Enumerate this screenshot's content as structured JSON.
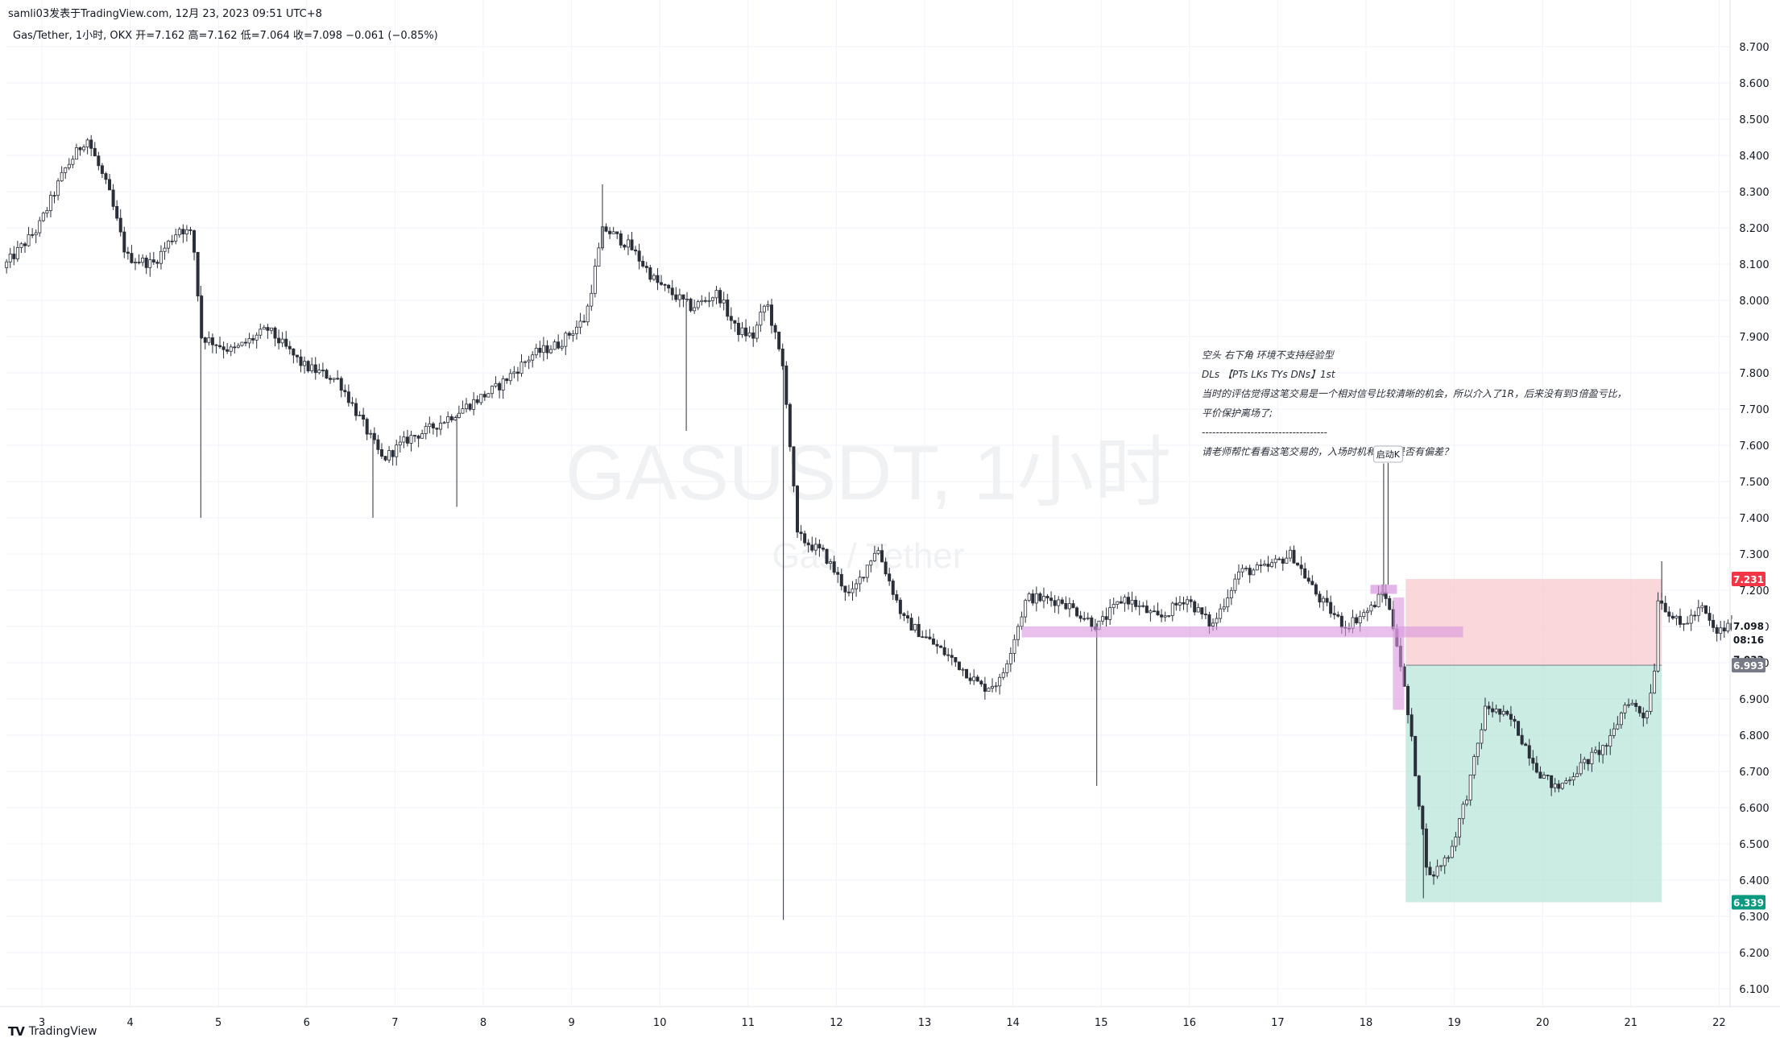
{
  "header": {
    "publish_line": "samli03发表于TradingView.com,  12月 23, 2023 09:51 UTC+8",
    "legend_symbol": "Gas/Tether, 1小时, OKX",
    "legend_ohlc": "开=7.162  高=7.162  低=7.064  收=7.098  −0.061 (−0.85%)"
  },
  "watermark": {
    "ticker": "GASUSDT, 1小时",
    "name": "Gas / Tether"
  },
  "footer": {
    "logo": "TradingView"
  },
  "annotation": {
    "lines": [
      "空头 右下角 环境不支持经验型",
      "DLs 【PTs LKs TYs DNs】1st",
      "当时的评估觉得这笔交易是一个相对信号比较清晰的机会，所以介入了1R，后来没有到3倍盈亏比，",
      "平价保护离场了;",
      "------------------------------------",
      "请老师帮忙看看这笔交易的，入场时机和逻辑是否有偏差？"
    ],
    "callout": "启动K"
  },
  "colors": {
    "bull": "#ffffff",
    "bear": "#2a2e39",
    "candle_outline": "#2a2e39",
    "stop_zone": "#f8c9cd",
    "target_zone": "#b8e6da",
    "highlight": "#d896de",
    "stop_badge": "#f23645",
    "target_badge": "#089981",
    "entry_badge": "#787b86",
    "last_badge": "#ffffff"
  },
  "chart_data": {
    "type": "candlestick",
    "symbol": "GASUSDT",
    "exchange": "OKX",
    "interval": "1小时",
    "ylim": [
      6.05,
      8.78
    ],
    "y_ticks": [
      "8.700",
      "8.600",
      "8.500",
      "8.400",
      "8.300",
      "8.200",
      "8.100",
      "8.000",
      "7.900",
      "7.800",
      "7.700",
      "7.600",
      "7.500",
      "7.400",
      "7.300",
      "7.200",
      "7.100",
      "7.000",
      "6.900",
      "6.800",
      "6.700",
      "6.600",
      "6.500",
      "6.400",
      "6.300",
      "6.200",
      "6.100"
    ],
    "x_ticks": [
      "3",
      "4",
      "5",
      "6",
      "7",
      "8",
      "9",
      "10",
      "11",
      "12",
      "13",
      "14",
      "15",
      "16",
      "17",
      "18",
      "19",
      "20",
      "21",
      "22"
    ],
    "price_labels": {
      "stop": "7.231",
      "current": "7.098",
      "countdown": "08:16",
      "current_alt": "7.032",
      "entry": "6.993",
      "target": "6.339"
    },
    "path": [
      [
        2.6,
        8.09
      ],
      [
        3.0,
        8.2
      ],
      [
        3.3,
        8.36
      ],
      [
        3.55,
        8.45
      ],
      [
        3.8,
        8.3
      ],
      [
        4.0,
        8.12
      ],
      [
        4.3,
        8.1
      ],
      [
        4.6,
        8.2
      ],
      [
        4.75,
        8.18
      ],
      [
        4.85,
        7.9
      ],
      [
        5.2,
        7.86
      ],
      [
        5.6,
        7.92
      ],
      [
        6.0,
        7.82
      ],
      [
        6.4,
        7.78
      ],
      [
        6.7,
        7.65
      ],
      [
        6.9,
        7.56
      ],
      [
        7.2,
        7.62
      ],
      [
        7.4,
        7.64
      ],
      [
        7.8,
        7.7
      ],
      [
        8.2,
        7.76
      ],
      [
        8.6,
        7.85
      ],
      [
        8.9,
        7.88
      ],
      [
        9.2,
        7.95
      ],
      [
        9.4,
        8.2
      ],
      [
        9.7,
        8.15
      ],
      [
        10.0,
        8.05
      ],
      [
        10.4,
        7.98
      ],
      [
        10.7,
        8.02
      ],
      [
        10.9,
        7.92
      ],
      [
        11.1,
        7.9
      ],
      [
        11.25,
        8.0
      ],
      [
        11.45,
        7.8
      ],
      [
        11.6,
        7.35
      ],
      [
        11.9,
        7.3
      ],
      [
        12.2,
        7.18
      ],
      [
        12.5,
        7.32
      ],
      [
        12.8,
        7.12
      ],
      [
        13.1,
        7.06
      ],
      [
        13.4,
        7.0
      ],
      [
        13.7,
        6.93
      ],
      [
        13.9,
        6.95
      ],
      [
        14.2,
        7.18
      ],
      [
        14.6,
        7.17
      ],
      [
        15.0,
        7.1
      ],
      [
        15.3,
        7.18
      ],
      [
        15.7,
        7.12
      ],
      [
        16.0,
        7.18
      ],
      [
        16.3,
        7.1
      ],
      [
        16.6,
        7.25
      ],
      [
        16.9,
        7.26
      ],
      [
        17.2,
        7.3
      ],
      [
        17.5,
        7.18
      ],
      [
        17.8,
        7.1
      ],
      [
        18.1,
        7.15
      ],
      [
        18.25,
        7.2
      ],
      [
        18.4,
        7.05
      ],
      [
        18.55,
        6.8
      ],
      [
        18.75,
        6.4
      ],
      [
        19.0,
        6.48
      ],
      [
        19.2,
        6.65
      ],
      [
        19.4,
        6.88
      ],
      [
        19.7,
        6.84
      ],
      [
        20.0,
        6.7
      ],
      [
        20.2,
        6.65
      ],
      [
        20.5,
        6.72
      ],
      [
        20.8,
        6.78
      ],
      [
        21.0,
        6.9
      ],
      [
        21.2,
        6.85
      ],
      [
        21.3,
        6.95
      ],
      [
        21.35,
        7.18
      ],
      [
        21.6,
        7.1
      ],
      [
        21.85,
        7.15
      ],
      [
        22.0,
        7.08
      ],
      [
        22.15,
        7.1
      ]
    ],
    "spikes": [
      {
        "day": 4.8,
        "low": 7.4
      },
      {
        "day": 6.75,
        "low": 7.4
      },
      {
        "day": 7.7,
        "low": 7.43
      },
      {
        "day": 9.35,
        "high": 8.32
      },
      {
        "day": 10.3,
        "low": 7.64
      },
      {
        "day": 11.4,
        "low": 6.29
      },
      {
        "day": 14.95,
        "low": 6.66
      },
      {
        "day": 18.2,
        "high": 7.55
      },
      {
        "day": 18.65,
        "low": 6.35
      },
      {
        "day": 21.35,
        "high": 7.28
      }
    ],
    "highlight_zone": {
      "from_day": 14.1,
      "to_day": 19.1,
      "low": 7.07,
      "high": 7.1
    },
    "entry_candle": {
      "day": 18.25,
      "low": 6.87,
      "high": 7.18
    },
    "position": {
      "side": "short",
      "from_day": 18.45,
      "to_day": 21.35,
      "stop": 7.231,
      "entry": 6.993,
      "target": 6.339
    }
  }
}
